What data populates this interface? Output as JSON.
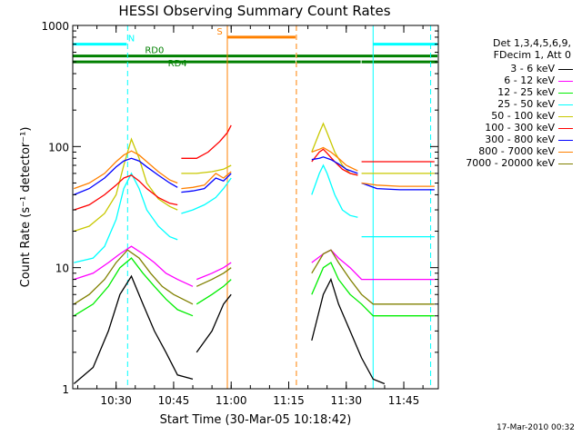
{
  "chart_data": {
    "type": "line",
    "title": "HESSI Observing Summary Count Rates",
    "xlabel": "Start Time (30-Mar-05 10:18:42)",
    "ylabel": "Count Rate (s⁻¹ detector⁻¹)",
    "x_ticks": [
      "10:30",
      "10:45",
      "11:00",
      "11:15",
      "11:30",
      "11:45"
    ],
    "y_ticks": [
      "1",
      "10",
      "100",
      "1000"
    ],
    "xlim": [
      "10:18:42",
      "11:54"
    ],
    "ylim": [
      1,
      1000
    ],
    "yscale": "log",
    "legend_position": "right",
    "legend_header": [
      "Det 1,3,4,5,6,9,",
      "FDecim 1, Att 0"
    ],
    "legend": [
      {
        "label": "3 - 6 keV",
        "color": "#000000"
      },
      {
        "label": "6 - 12 keV",
        "color": "#ff00ff"
      },
      {
        "label": "12 - 25 keV",
        "color": "#00ee00"
      },
      {
        "label": "25 - 50 keV",
        "color": "#00ffff"
      },
      {
        "label": "50 - 100 keV",
        "color": "#c8c800"
      },
      {
        "label": "100 - 300 keV",
        "color": "#ff0000"
      },
      {
        "label": "300 - 800 keV",
        "color": "#0000ff"
      },
      {
        "label": "800 - 7000 keV",
        "color": "#ff8000"
      },
      {
        "label": "7000 - 20000 keV",
        "color": "#808000"
      }
    ],
    "flags": [
      {
        "label": "N",
        "color": "#00ffff",
        "segments": [
          [
            "10:18:42",
            "10:33"
          ],
          [
            "11:37",
            "11:54"
          ]
        ],
        "y": 700
      },
      {
        "label": "S",
        "color": "#ff8000",
        "segments": [
          [
            "10:59",
            "11:17"
          ]
        ],
        "y": 800
      },
      {
        "label": "RD0",
        "color": "#008000",
        "segments": [
          [
            "10:18:42",
            "11:17"
          ],
          [
            "11:17",
            "11:54"
          ]
        ],
        "y": 560
      },
      {
        "label": "RD4",
        "color": "#008000",
        "segments": [
          [
            "10:18:42",
            "11:17"
          ],
          [
            "11:17",
            "11:34"
          ],
          [
            "11:34",
            "11:54"
          ]
        ],
        "y": 500
      }
    ],
    "vlines": [
      {
        "time": "10:33",
        "color": "#00ffff",
        "style": "dashed"
      },
      {
        "time": "10:59",
        "color": "#ff8000",
        "style": "solid"
      },
      {
        "time": "11:17",
        "color": "#ff8000",
        "style": "dashed"
      },
      {
        "time": "11:37",
        "color": "#00ffff",
        "style": "solid"
      },
      {
        "time": "11:52",
        "color": "#00ffff",
        "style": "dashed"
      }
    ],
    "series": [
      {
        "name": "3 - 6 keV",
        "color": "#000000",
        "seg1": [
          [
            "10:19",
            1.1
          ],
          [
            "10:24",
            1.5
          ],
          [
            "10:28",
            3
          ],
          [
            "10:31",
            6
          ],
          [
            "10:34",
            8.5
          ],
          [
            "10:37",
            5
          ],
          [
            "10:40",
            3
          ],
          [
            "10:43",
            2
          ],
          [
            "10:46",
            1.3
          ],
          [
            "10:50",
            1.2
          ]
        ],
        "seg2": [
          [
            "10:51",
            2
          ],
          [
            "10:55",
            3
          ],
          [
            "10:58",
            5
          ],
          [
            "11:00",
            6
          ]
        ],
        "seg3": [
          [
            "11:21",
            2.5
          ],
          [
            "11:24",
            6
          ],
          [
            "11:26",
            8
          ],
          [
            "11:28",
            5
          ],
          [
            "11:31",
            3
          ],
          [
            "11:34",
            1.8
          ],
          [
            "11:37",
            1.2
          ],
          [
            "11:40",
            1.1
          ]
        ]
      },
      {
        "name": "6 - 12 keV",
        "color": "#ff00ff",
        "seg1": [
          [
            "10:19",
            8
          ],
          [
            "10:24",
            9
          ],
          [
            "10:28",
            11
          ],
          [
            "10:31",
            13
          ],
          [
            "10:34",
            15
          ],
          [
            "10:37",
            13
          ],
          [
            "10:40",
            11
          ],
          [
            "10:43",
            9
          ],
          [
            "10:46",
            8
          ],
          [
            "10:50",
            7
          ]
        ],
        "seg2": [
          [
            "10:51",
            8
          ],
          [
            "10:55",
            9
          ],
          [
            "10:58",
            10
          ],
          [
            "11:00",
            11
          ]
        ],
        "seg3": [
          [
            "11:21",
            11
          ],
          [
            "11:24",
            13
          ],
          [
            "11:26",
            14
          ],
          [
            "11:28",
            12
          ],
          [
            "11:31",
            10
          ],
          [
            "11:34",
            8
          ],
          [
            "11:37",
            8
          ],
          [
            "11:42",
            8
          ],
          [
            "11:50",
            8
          ],
          [
            "11:53",
            8
          ]
        ]
      },
      {
        "name": "12 - 25 keV",
        "color": "#00ee00",
        "seg1": [
          [
            "10:19",
            4
          ],
          [
            "10:24",
            5
          ],
          [
            "10:28",
            7
          ],
          [
            "10:31",
            10
          ],
          [
            "10:34",
            12
          ],
          [
            "10:37",
            9
          ],
          [
            "10:40",
            7
          ],
          [
            "10:43",
            5.5
          ],
          [
            "10:46",
            4.5
          ],
          [
            "10:50",
            4
          ]
        ],
        "seg2": [
          [
            "10:51",
            5
          ],
          [
            "10:55",
            6
          ],
          [
            "10:58",
            7
          ],
          [
            "11:00",
            8
          ]
        ],
        "seg3": [
          [
            "11:21",
            6
          ],
          [
            "11:24",
            10
          ],
          [
            "11:26",
            11
          ],
          [
            "11:28",
            8
          ],
          [
            "11:31",
            6
          ],
          [
            "11:34",
            5
          ],
          [
            "11:37",
            4
          ],
          [
            "11:42",
            4
          ],
          [
            "11:50",
            4
          ],
          [
            "11:53",
            4
          ]
        ]
      },
      {
        "name": "25 - 50 keV",
        "color": "#00ffff",
        "seg1": [
          [
            "10:19",
            11
          ],
          [
            "10:24",
            12
          ],
          [
            "10:27",
            15
          ],
          [
            "10:30",
            25
          ],
          [
            "10:32",
            45
          ],
          [
            "10:34",
            60
          ],
          [
            "10:36",
            45
          ],
          [
            "10:38",
            30
          ],
          [
            "10:41",
            22
          ],
          [
            "10:44",
            18
          ],
          [
            "10:46",
            17
          ]
        ],
        "seg2": [
          [
            "10:47",
            28
          ],
          [
            "10:50",
            30
          ],
          [
            "10:53",
            33
          ],
          [
            "10:56",
            38
          ],
          [
            "10:58",
            45
          ],
          [
            "11:00",
            55
          ]
        ],
        "seg3": [
          [
            "11:21",
            40
          ],
          [
            "11:23",
            60
          ],
          [
            "11:24",
            70
          ],
          [
            "11:25",
            60
          ],
          [
            "11:27",
            40
          ],
          [
            "11:29",
            30
          ],
          [
            "11:31",
            27
          ],
          [
            "11:33",
            26
          ]
        ],
        "seg4": [
          [
            "11:34",
            18
          ],
          [
            "11:38",
            18
          ],
          [
            "11:44",
            18
          ],
          [
            "11:53",
            18
          ]
        ]
      },
      {
        "name": "50 - 100 keV",
        "color": "#c8c800",
        "seg1": [
          [
            "10:19",
            20
          ],
          [
            "10:23",
            22
          ],
          [
            "10:27",
            28
          ],
          [
            "10:30",
            40
          ],
          [
            "10:32",
            70
          ],
          [
            "10:34",
            115
          ],
          [
            "10:36",
            80
          ],
          [
            "10:38",
            50
          ],
          [
            "10:41",
            37
          ],
          [
            "10:44",
            32
          ],
          [
            "10:46",
            30
          ]
        ],
        "seg2": [
          [
            "10:47",
            60
          ],
          [
            "10:51",
            60
          ],
          [
            "10:55",
            62
          ],
          [
            "10:58",
            65
          ],
          [
            "11:00",
            70
          ]
        ],
        "seg3": [
          [
            "11:21",
            90
          ],
          [
            "11:23",
            130
          ],
          [
            "11:24",
            155
          ],
          [
            "11:25",
            130
          ],
          [
            "11:27",
            90
          ],
          [
            "11:29",
            70
          ],
          [
            "11:31",
            60
          ],
          [
            "11:33",
            58
          ]
        ],
        "seg4": [
          [
            "11:34",
            60
          ],
          [
            "11:40",
            60
          ],
          [
            "11:46",
            60
          ],
          [
            "11:53",
            60
          ]
        ]
      },
      {
        "name": "100 - 300 keV",
        "color": "#ff0000",
        "seg1": [
          [
            "10:19",
            30
          ],
          [
            "10:23",
            33
          ],
          [
            "10:27",
            40
          ],
          [
            "10:30",
            48
          ],
          [
            "10:32",
            55
          ],
          [
            "10:34",
            58
          ],
          [
            "10:36",
            52
          ],
          [
            "10:38",
            45
          ],
          [
            "10:41",
            38
          ],
          [
            "10:44",
            34
          ],
          [
            "10:46",
            33
          ]
        ],
        "seg2": [
          [
            "10:47",
            80
          ],
          [
            "10:51",
            80
          ],
          [
            "10:54",
            90
          ],
          [
            "10:57",
            110
          ],
          [
            "10:59",
            130
          ],
          [
            "11:00",
            150
          ]
        ],
        "seg3": [
          [
            "11:21",
            75
          ],
          [
            "11:23",
            90
          ],
          [
            "11:24",
            95
          ],
          [
            "11:25",
            88
          ],
          [
            "11:27",
            75
          ],
          [
            "11:29",
            65
          ],
          [
            "11:31",
            60
          ],
          [
            "11:33",
            58
          ]
        ],
        "seg4": [
          [
            "11:34",
            75
          ],
          [
            "11:40",
            75
          ],
          [
            "11:46",
            75
          ],
          [
            "11:53",
            75
          ]
        ]
      },
      {
        "name": "300 - 800 keV",
        "color": "#0000ff",
        "seg1": [
          [
            "10:19",
            40
          ],
          [
            "10:23",
            45
          ],
          [
            "10:27",
            55
          ],
          [
            "10:30",
            68
          ],
          [
            "10:32",
            76
          ],
          [
            "10:34",
            80
          ],
          [
            "10:36",
            76
          ],
          [
            "10:38",
            68
          ],
          [
            "10:41",
            58
          ],
          [
            "10:44",
            50
          ],
          [
            "10:46",
            46
          ]
        ],
        "seg2": [
          [
            "10:47",
            42
          ],
          [
            "10:50",
            43
          ],
          [
            "10:53",
            45
          ],
          [
            "10:56",
            55
          ],
          [
            "10:58",
            52
          ],
          [
            "11:00",
            60
          ]
        ],
        "seg3": [
          [
            "11:21",
            78
          ],
          [
            "11:23",
            80
          ],
          [
            "11:24",
            82
          ],
          [
            "11:26",
            78
          ],
          [
            "11:28",
            72
          ],
          [
            "11:30",
            65
          ],
          [
            "11:33",
            60
          ]
        ],
        "seg4": [
          [
            "11:34",
            50
          ],
          [
            "11:38",
            45
          ],
          [
            "11:44",
            44
          ],
          [
            "11:53",
            44
          ]
        ]
      },
      {
        "name": "800 - 7000 keV",
        "color": "#ff8000",
        "seg1": [
          [
            "10:19",
            45
          ],
          [
            "10:23",
            50
          ],
          [
            "10:27",
            60
          ],
          [
            "10:30",
            75
          ],
          [
            "10:32",
            85
          ],
          [
            "10:34",
            92
          ],
          [
            "10:36",
            85
          ],
          [
            "10:38",
            75
          ],
          [
            "10:41",
            62
          ],
          [
            "10:44",
            53
          ],
          [
            "10:46",
            50
          ]
        ],
        "seg2": [
          [
            "10:47",
            45
          ],
          [
            "10:50",
            46
          ],
          [
            "10:53",
            48
          ],
          [
            "10:56",
            60
          ],
          [
            "10:58",
            55
          ],
          [
            "11:00",
            62
          ]
        ],
        "seg3": [
          [
            "11:21",
            90
          ],
          [
            "11:23",
            95
          ],
          [
            "11:24",
            98
          ],
          [
            "11:26",
            90
          ],
          [
            "11:28",
            80
          ],
          [
            "11:30",
            70
          ],
          [
            "11:33",
            63
          ]
        ],
        "seg4": [
          [
            "11:34",
            50
          ],
          [
            "11:38",
            48
          ],
          [
            "11:44",
            47
          ],
          [
            "11:53",
            47
          ]
        ]
      },
      {
        "name": "7000 - 20000 keV",
        "color": "#808000",
        "seg1": [
          [
            "10:19",
            5
          ],
          [
            "10:23",
            6
          ],
          [
            "10:27",
            8
          ],
          [
            "10:30",
            11
          ],
          [
            "10:33",
            14
          ],
          [
            "10:36",
            12
          ],
          [
            "10:39",
            9
          ],
          [
            "10:42",
            7
          ],
          [
            "10:45",
            6
          ],
          [
            "10:50",
            5
          ]
        ],
        "seg2": [
          [
            "10:51",
            7
          ],
          [
            "10:55",
            8
          ],
          [
            "10:58",
            9
          ],
          [
            "11:00",
            10
          ]
        ],
        "seg3": [
          [
            "11:21",
            9
          ],
          [
            "11:24",
            13
          ],
          [
            "11:26",
            14
          ],
          [
            "11:28",
            11
          ],
          [
            "11:31",
            8
          ],
          [
            "11:34",
            6
          ],
          [
            "11:37",
            5
          ],
          [
            "11:42",
            5
          ],
          [
            "11:50",
            5
          ],
          [
            "11:53",
            5
          ]
        ]
      }
    ]
  },
  "footer": "17-Mar-2010 00:32"
}
